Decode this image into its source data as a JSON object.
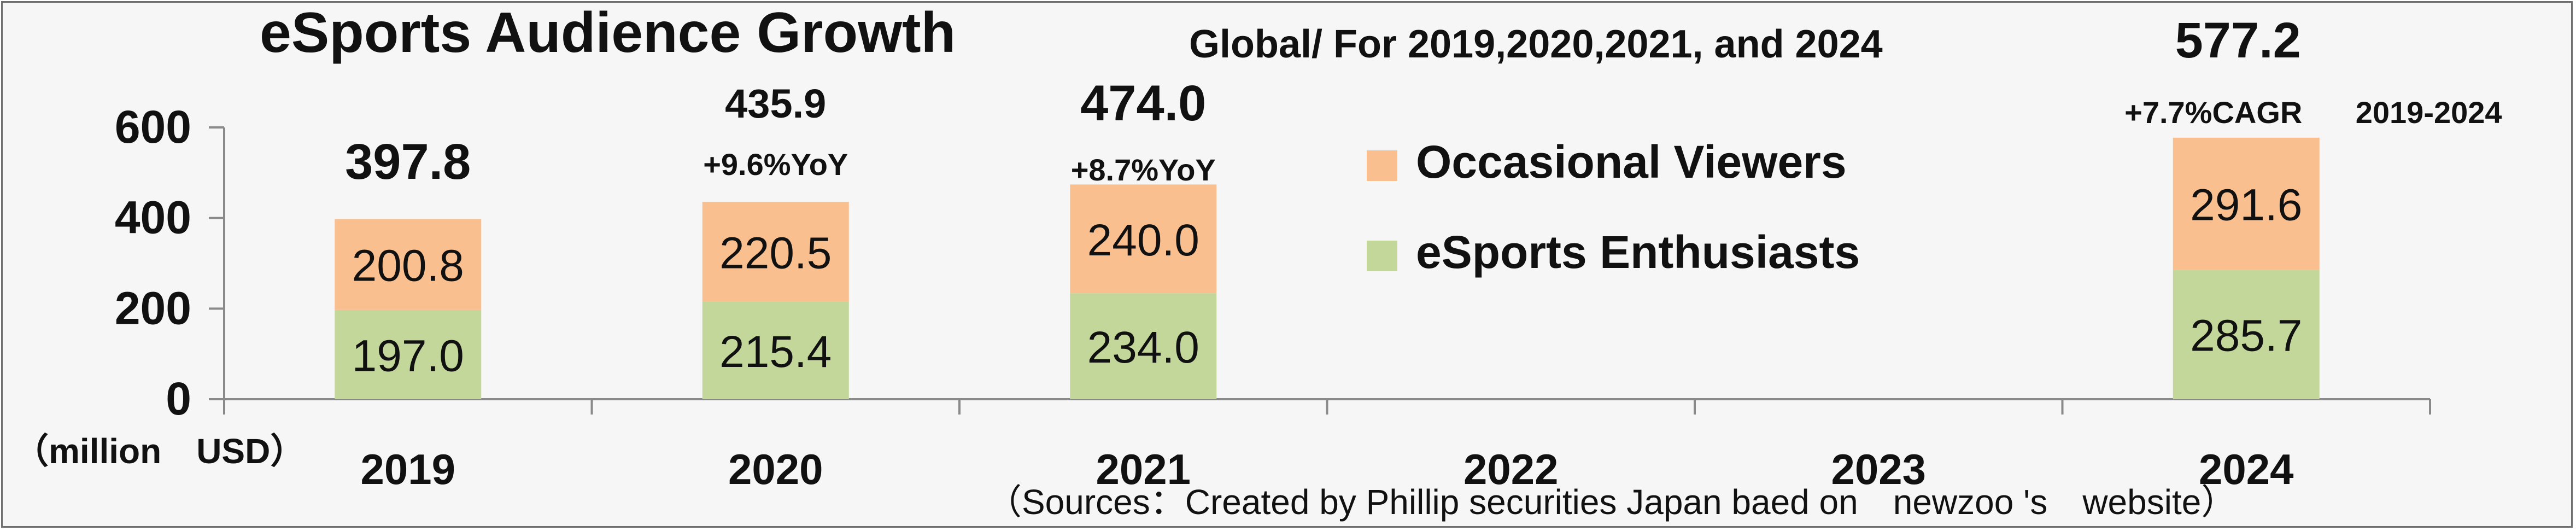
{
  "chart_data": {
    "type": "bar",
    "stacked": true,
    "title": "eSports Audience Growth",
    "subtitle": "Global/ For 2019,2020,2021, and 2024",
    "unit_label": "（million　USD）",
    "source": "（Sources：Created by Phillip securities Japan baed on　newzoo 's　website）",
    "categories": [
      "2019",
      "2020",
      "2021",
      "2022",
      "2023",
      "2024"
    ],
    "ylim": [
      0,
      600
    ],
    "yticks": [
      "600",
      "400",
      "200",
      "0"
    ],
    "grid": false,
    "legend_position": "inside-center",
    "series": [
      {
        "name": "eSports Enthusiasts",
        "color": "#c4d79b",
        "values": [
          197.0,
          215.4,
          234.0,
          null,
          null,
          285.7
        ],
        "labels": [
          "197.0",
          "215.4",
          "234.0",
          "",
          "",
          "285.7"
        ]
      },
      {
        "name": "Occasional Viewers",
        "color": "#fabf8f",
        "values": [
          200.8,
          220.5,
          240.0,
          null,
          null,
          291.6
        ],
        "labels": [
          "200.8",
          "220.5",
          "240.0",
          "",
          "",
          "291.6"
        ]
      }
    ],
    "totals": [
      "397.8",
      "435.9",
      "474.0",
      "",
      "",
      "577.2"
    ],
    "growth_annotations": [
      "",
      "+9.6%YoY",
      "+8.7%YoY",
      "",
      "",
      "+7.7%CAGR"
    ],
    "cagr_period": "2019-2024"
  }
}
